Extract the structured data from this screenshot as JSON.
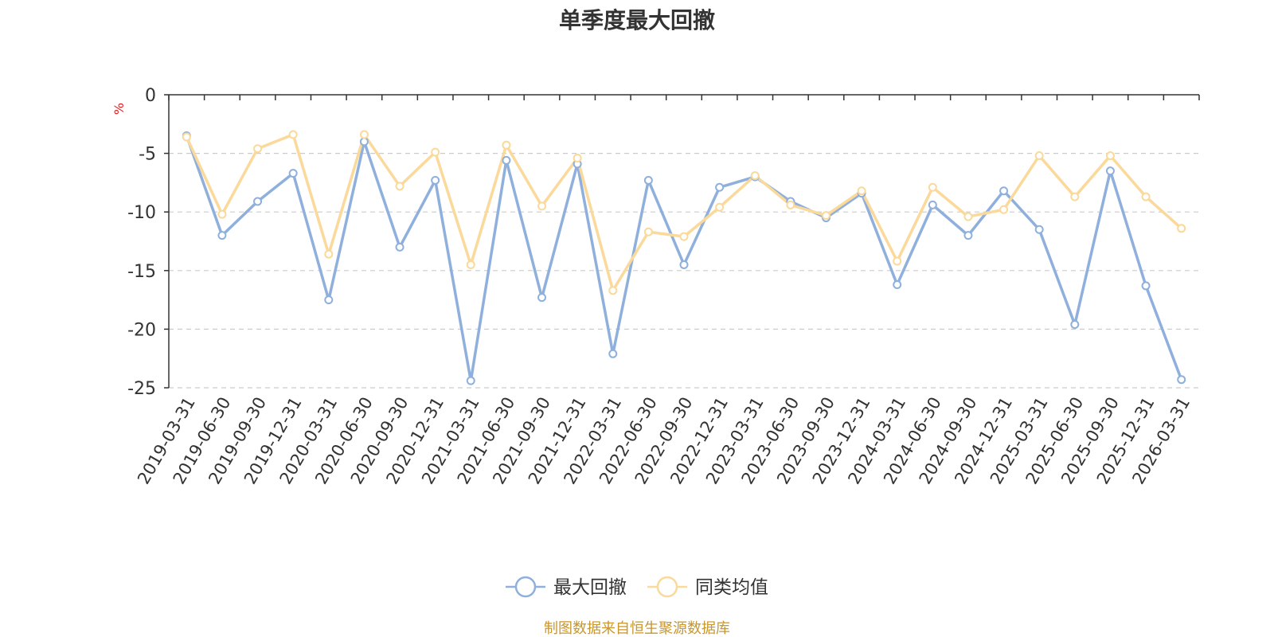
{
  "chart_data": {
    "type": "line",
    "title": "单季度最大回撤",
    "ylabel": "%",
    "xlabel": "",
    "ylim": [
      -25,
      0
    ],
    "yticks": [
      0,
      -5,
      -10,
      -15,
      -20,
      -25
    ],
    "grid": true,
    "legend_position": "bottom",
    "categories": [
      "2019-03-31",
      "2019-06-30",
      "2019-09-30",
      "2019-12-31",
      "2020-03-31",
      "2020-06-30",
      "2020-09-30",
      "2020-12-31",
      "2021-03-31",
      "2021-06-30",
      "2021-09-30",
      "2021-12-31",
      "2022-03-31",
      "2022-06-30",
      "2022-09-30",
      "2022-12-31",
      "2023-03-31",
      "2023-06-30",
      "2023-09-30",
      "2023-12-31",
      "2024-03-31",
      "2024-06-30",
      "2024-09-30",
      "2024-12-31",
      "2025-03-31",
      "2025-06-30",
      "2025-09-30",
      "2025-12-31",
      "2026-03-31"
    ],
    "series": [
      {
        "name": "最大回撤",
        "color": "#8fb0dc",
        "values": [
          -3.5,
          -12.0,
          -9.1,
          -6.7,
          -17.5,
          -4.0,
          -13.0,
          -7.3,
          -24.4,
          -5.6,
          -17.3,
          -5.9,
          -22.1,
          -7.3,
          -14.5,
          -7.9,
          -7.0,
          -9.1,
          -10.5,
          -8.4,
          -16.2,
          -9.4,
          -12.0,
          -8.2,
          -11.5,
          -19.6,
          -6.5,
          -16.3,
          -24.3
        ]
      },
      {
        "name": "同类均值",
        "color": "#fad99a",
        "values": [
          -3.6,
          -10.2,
          -4.6,
          -3.4,
          -13.6,
          -3.4,
          -7.8,
          -4.9,
          -14.5,
          -4.3,
          -9.5,
          -5.4,
          -16.7,
          -11.7,
          -12.1,
          -9.6,
          -6.9,
          -9.4,
          -10.3,
          -8.2,
          -14.2,
          -7.9,
          -10.4,
          -9.8,
          -5.2,
          -8.7,
          -5.2,
          -8.7,
          -11.4
        ]
      }
    ],
    "source_note": "制图数据来自恒生聚源数据库"
  }
}
